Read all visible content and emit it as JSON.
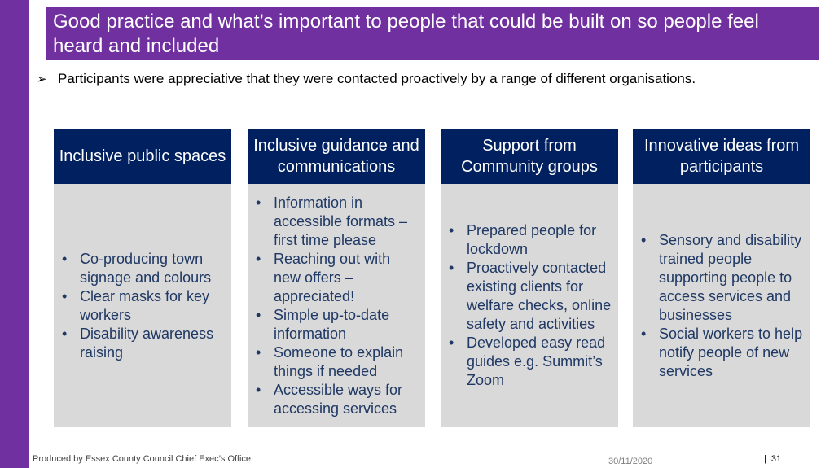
{
  "title": "Good practice and what’s important to people that could be built on so people feel heard and included",
  "intro": {
    "bullet_icon": "arrow-bullet-icon",
    "text": "Participants were appreciative that they were contacted proactively by a range of different organisations."
  },
  "colors": {
    "accent_purple": "#7030a0",
    "header_navy": "#002060",
    "body_grey": "#d9d9d9",
    "bullet_text": "#1f3864"
  },
  "cards": [
    {
      "heading": "Inclusive public spaces",
      "items": [
        "Co-producing town signage and colours",
        "Clear masks for key workers",
        "Disability awareness raising"
      ]
    },
    {
      "heading": "Inclusive guidance and communications",
      "items": [
        "Information in accessible formats – first time please",
        "Reaching out with new offers – appreciated!",
        "Simple up-to-date information",
        "Someone to explain things if needed",
        "Accessible ways for accessing services"
      ]
    },
    {
      "heading": "Support from Community groups",
      "items": [
        "Prepared people for lockdown",
        "Proactively contacted existing clients for welfare checks, online safety and activities",
        "Developed easy read guides e.g. Summit’s Zoom"
      ]
    },
    {
      "heading": "Innovative ideas from participants",
      "items": [
        "Sensory and disability trained people supporting people to access services and businesses",
        "Social workers to help notify people of new services"
      ]
    }
  ],
  "footer": {
    "credit": "Produced by Essex County Council Chief Exec’s Office",
    "date": "30/11/2020",
    "separator": "|",
    "page_number": "31"
  }
}
